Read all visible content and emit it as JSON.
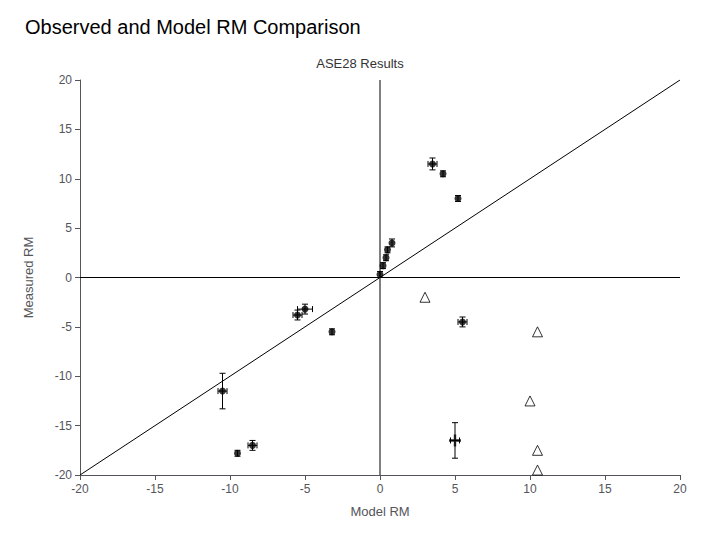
{
  "chart_data": {
    "type": "scatter",
    "title": "Observed and Model RM Comparison",
    "subtitle": "ASE28 Results",
    "xlabel": "Model RM",
    "ylabel": "Measured RM",
    "xlim": [
      -20,
      20
    ],
    "ylim": [
      -20,
      20
    ],
    "xticks": [
      -20,
      -15,
      -10,
      -5,
      0,
      5,
      10,
      15,
      20
    ],
    "yticks": [
      -20,
      -15,
      -10,
      -5,
      0,
      5,
      10,
      15,
      20
    ],
    "grid": false,
    "series": [
      {
        "type": "line",
        "line_style": "solid",
        "color": "#000000",
        "x": [
          -20,
          20
        ],
        "values": [
          0,
          0
        ]
      },
      {
        "type": "line",
        "line_style": "solid",
        "color": "#000000",
        "x": [
          0,
          0
        ],
        "values": [
          -20,
          20
        ]
      },
      {
        "type": "line",
        "line_style": "solid",
        "color": "#000000",
        "x": [
          -20,
          20
        ],
        "values": [
          -20,
          20
        ]
      },
      {
        "type": "scatter",
        "marker": "circle",
        "color": "#000000",
        "x": [
          0.0,
          0.2,
          0.4,
          0.5,
          0.8,
          3.5,
          4.2,
          5.2,
          -5.0,
          -5.5,
          -3.2,
          -10.5,
          -8.5,
          -9.5,
          5.5
        ],
        "values": [
          0.3,
          1.2,
          2.0,
          2.8,
          3.5,
          11.5,
          10.5,
          8.0,
          -3.2,
          -3.8,
          -5.5,
          -11.5,
          -17.0,
          -17.8,
          -4.5
        ],
        "xerr": [
          0.0,
          0.0,
          0.0,
          0.0,
          0.0,
          0.3,
          0.0,
          0.0,
          0.5,
          0.3,
          0.0,
          0.3,
          0.3,
          0.0,
          0.3
        ],
        "yerr": [
          0.3,
          0.3,
          0.3,
          0.3,
          0.4,
          0.6,
          0.3,
          0.3,
          0.5,
          0.5,
          0.3,
          1.8,
          0.5,
          0.3,
          0.5
        ]
      },
      {
        "type": "scatter",
        "marker": "triangle-open",
        "color": "#000000",
        "x": [
          3.0,
          10.5,
          10.0,
          10.5,
          10.5
        ],
        "values": [
          -2.0,
          -5.5,
          -12.5,
          -17.5,
          -19.5
        ]
      },
      {
        "type": "scatter",
        "marker": "plus",
        "color": "#000000",
        "x": [
          5.0
        ],
        "values": [
          -16.5
        ],
        "xerr": [
          0.3
        ],
        "yerr": [
          1.8
        ]
      }
    ]
  }
}
